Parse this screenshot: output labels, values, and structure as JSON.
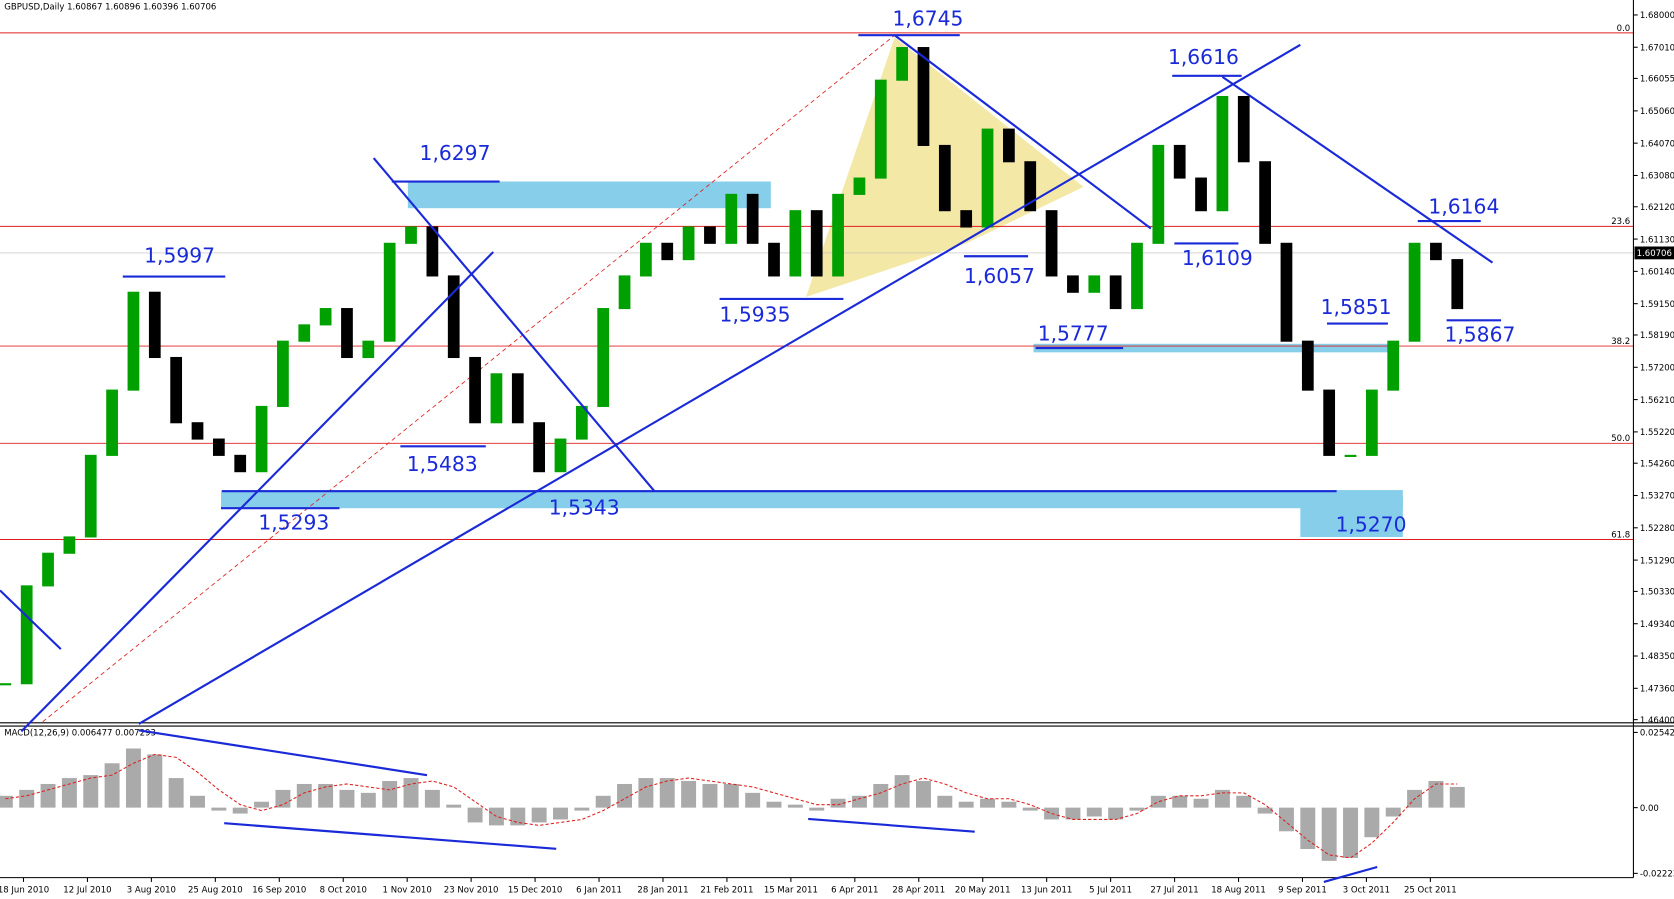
{
  "chart_data": {
    "type": "candlestick",
    "header": "GBPUSD,Daily  1.60867 1.60896 1.60396 1.60706",
    "current_price": {
      "value": 1.60706,
      "label": "1.60706"
    },
    "categories": [
      "18 Jun 2010",
      "12 Jul 2010",
      "3 Aug 2010",
      "25 Aug 2010",
      "16 Sep 2010",
      "8 Oct 2010",
      "1 Nov 2010",
      "23 Nov 2010",
      "15 Dec 2010",
      "6 Jan 2011",
      "28 Jan 2011",
      "21 Feb 2011",
      "15 Mar 2011",
      "6 Apr 2011",
      "28 Apr 2011",
      "20 May 2011",
      "13 Jun 2011",
      "5 Jul 2011",
      "27 Jul 2011",
      "18 Aug 2011",
      "9 Sep 2011",
      "3 Oct 2011",
      "25 Oct 2011"
    ],
    "closes": [
      1.475,
      1.505,
      1.515,
      1.52,
      1.545,
      1.565,
      1.595,
      1.575,
      1.555,
      1.55,
      1.545,
      1.54,
      1.56,
      1.58,
      1.585,
      1.59,
      1.575,
      1.58,
      1.61,
      1.615,
      1.6,
      1.575,
      1.555,
      1.57,
      1.555,
      1.54,
      1.55,
      1.56,
      1.59,
      1.6,
      1.61,
      1.605,
      1.615,
      1.61,
      1.625,
      1.61,
      1.6,
      1.62,
      1.6,
      1.625,
      1.63,
      1.66,
      1.67,
      1.64,
      1.62,
      1.615,
      1.645,
      1.635,
      1.62,
      1.6,
      1.595,
      1.6,
      1.59,
      1.61,
      1.64,
      1.63,
      1.62,
      1.655,
      1.635,
      1.61,
      1.58,
      1.565,
      1.545,
      1.545,
      1.565,
      1.58,
      1.61,
      1.605,
      1.59
    ],
    "up_color": "#00a000",
    "down_color": "#000000",
    "ylim": [
      1.464,
      1.68
    ],
    "yticks": [
      {
        "value": 1.68,
        "label": "1.68000"
      },
      {
        "value": 1.6701,
        "label": "1.67010"
      },
      {
        "value": 1.66055,
        "label": "1.66055"
      },
      {
        "value": 1.6506,
        "label": "1.65060"
      },
      {
        "value": 1.6407,
        "label": "1.64070"
      },
      {
        "value": 1.6308,
        "label": "1.63080"
      },
      {
        "value": 1.6212,
        "label": "1.62120"
      },
      {
        "value": 1.6113,
        "label": "1.61130"
      },
      {
        "value": 1.6014,
        "label": "1.60140"
      },
      {
        "value": 1.5915,
        "label": "1.59150"
      },
      {
        "value": 1.5819,
        "label": "1.58190"
      },
      {
        "value": 1.572,
        "label": "1.57200"
      },
      {
        "value": 1.5621,
        "label": "1.56210"
      },
      {
        "value": 1.5522,
        "label": "1.55220"
      },
      {
        "value": 1.5426,
        "label": "1.54260"
      },
      {
        "value": 1.5327,
        "label": "1.53270"
      },
      {
        "value": 1.5228,
        "label": "1.52280"
      },
      {
        "value": 1.5129,
        "label": "1.51290"
      },
      {
        "value": 1.5033,
        "label": "1.50330"
      },
      {
        "value": 1.4934,
        "label": "1.49340"
      },
      {
        "value": 1.4835,
        "label": "1.48350"
      },
      {
        "value": 1.4736,
        "label": "1.47360"
      },
      {
        "value": 1.464,
        "label": "1.46400"
      }
    ],
    "fib_levels": [
      {
        "label": "0.0",
        "price": 1.6745
      },
      {
        "label": "23.6",
        "price": 1.6152
      },
      {
        "label": "38.2",
        "price": 1.5785
      },
      {
        "label": "50.0",
        "price": 1.5487
      },
      {
        "label": "61.8",
        "price": 1.5192
      }
    ],
    "fib_color": "#e02020",
    "annotations": [
      "1,6745",
      "1,6297",
      "1,5997",
      "1,6616",
      "1,6164",
      "1,6109",
      "1,6057",
      "1,5935",
      "1,5777",
      "1,5851",
      "1,5867",
      "1,5483",
      "1,5293",
      "1,5343",
      "1,5270"
    ],
    "macd": {
      "title": "MACD(12,26,9) 0.006477 0.007293",
      "histogram": [
        0.004,
        0.006,
        0.008,
        0.01,
        0.011,
        0.015,
        0.02,
        0.018,
        0.01,
        0.004,
        -0.001,
        -0.002,
        0.002,
        0.006,
        0.008,
        0.008,
        0.006,
        0.005,
        0.009,
        0.01,
        0.006,
        0.001,
        -0.005,
        -0.006,
        -0.006,
        -0.005,
        -0.004,
        -0.001,
        0.004,
        0.008,
        0.01,
        0.01,
        0.009,
        0.008,
        0.008,
        0.005,
        0.002,
        0.001,
        -0.001,
        0.003,
        0.004,
        0.008,
        0.011,
        0.009,
        0.004,
        0.002,
        0.003,
        0.002,
        -0.001,
        -0.004,
        -0.004,
        -0.003,
        -0.004,
        -0.001,
        0.004,
        0.004,
        0.003,
        0.006,
        0.004,
        -0.002,
        -0.008,
        -0.014,
        -0.018,
        -0.017,
        -0.01,
        -0.003,
        0.006,
        0.009,
        0.007
      ],
      "signal": [
        0.003,
        0.004,
        0.006,
        0.008,
        0.01,
        0.011,
        0.015,
        0.018,
        0.017,
        0.012,
        0.006,
        0.001,
        -0.001,
        0.001,
        0.005,
        0.007,
        0.008,
        0.007,
        0.006,
        0.008,
        0.009,
        0.007,
        0.002,
        -0.003,
        -0.005,
        -0.006,
        -0.005,
        -0.004,
        -0.001,
        0.003,
        0.007,
        0.009,
        0.01,
        0.009,
        0.008,
        0.007,
        0.005,
        0.003,
        0.001,
        0.001,
        0.003,
        0.005,
        0.008,
        0.01,
        0.008,
        0.005,
        0.003,
        0.003,
        0.001,
        -0.002,
        -0.004,
        -0.004,
        -0.004,
        -0.002,
        0.002,
        0.004,
        0.004,
        0.005,
        0.005,
        0.001,
        -0.005,
        -0.011,
        -0.016,
        -0.017,
        -0.012,
        -0.005,
        0.003,
        0.008,
        0.008
      ],
      "hist_color": "#aaaaaa",
      "signal_color": "#e02020",
      "ylim": [
        -0.02223,
        0.025426
      ],
      "yticks": [
        0.025426,
        {
          "value": 0,
          "label": "0.00"
        },
        -0.02223
      ]
    }
  }
}
